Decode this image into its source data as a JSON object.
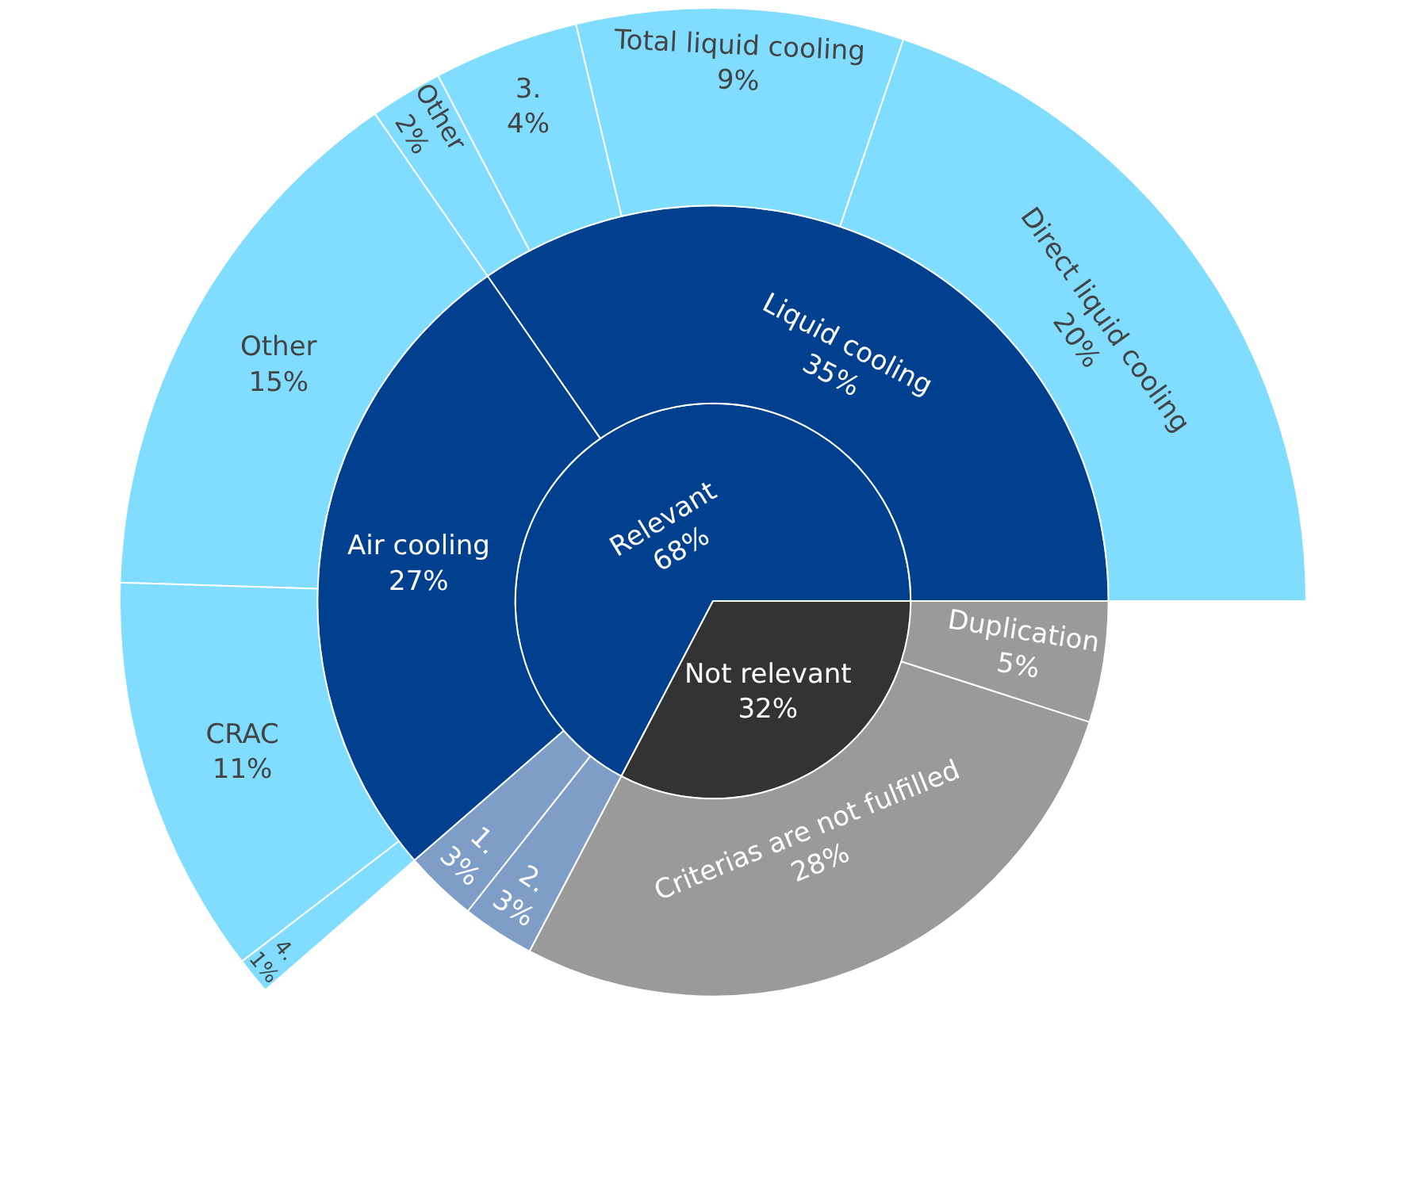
{
  "chart_data": {
    "type": "other",
    "categories": [
      "Relevant",
      "Not relevant",
      "Liquid cooling",
      "Air cooling",
      "1.",
      "2.",
      "Criterias are not fulfilled",
      "Duplication",
      "Direct liquid cooling",
      "Total liquid cooling",
      "3.",
      "Other",
      "Other",
      "CRAC",
      "4."
    ],
    "values": [
      68,
      32,
      35,
      27,
      3,
      3,
      28,
      5,
      20,
      9,
      4,
      2,
      15,
      11,
      1
    ],
    "value_labels": [
      "68%",
      "32%",
      "35%",
      "27%",
      "3%",
      "3%",
      "28%",
      "5%",
      "20%",
      "9%",
      "4%",
      "2%",
      "15%",
      "11%",
      "1%"
    ],
    "colors": [
      "#00408f",
      "#333333",
      "#00408f",
      "#00408f",
      "#4a76b0",
      "#4a76b0",
      "#707070",
      "#707070",
      "#4dcfff",
      "#4dcfff",
      "#4dcfff",
      "#4dcfff",
      "#4dcfff",
      "#4dcfff",
      "#4dcfff"
    ]
  }
}
